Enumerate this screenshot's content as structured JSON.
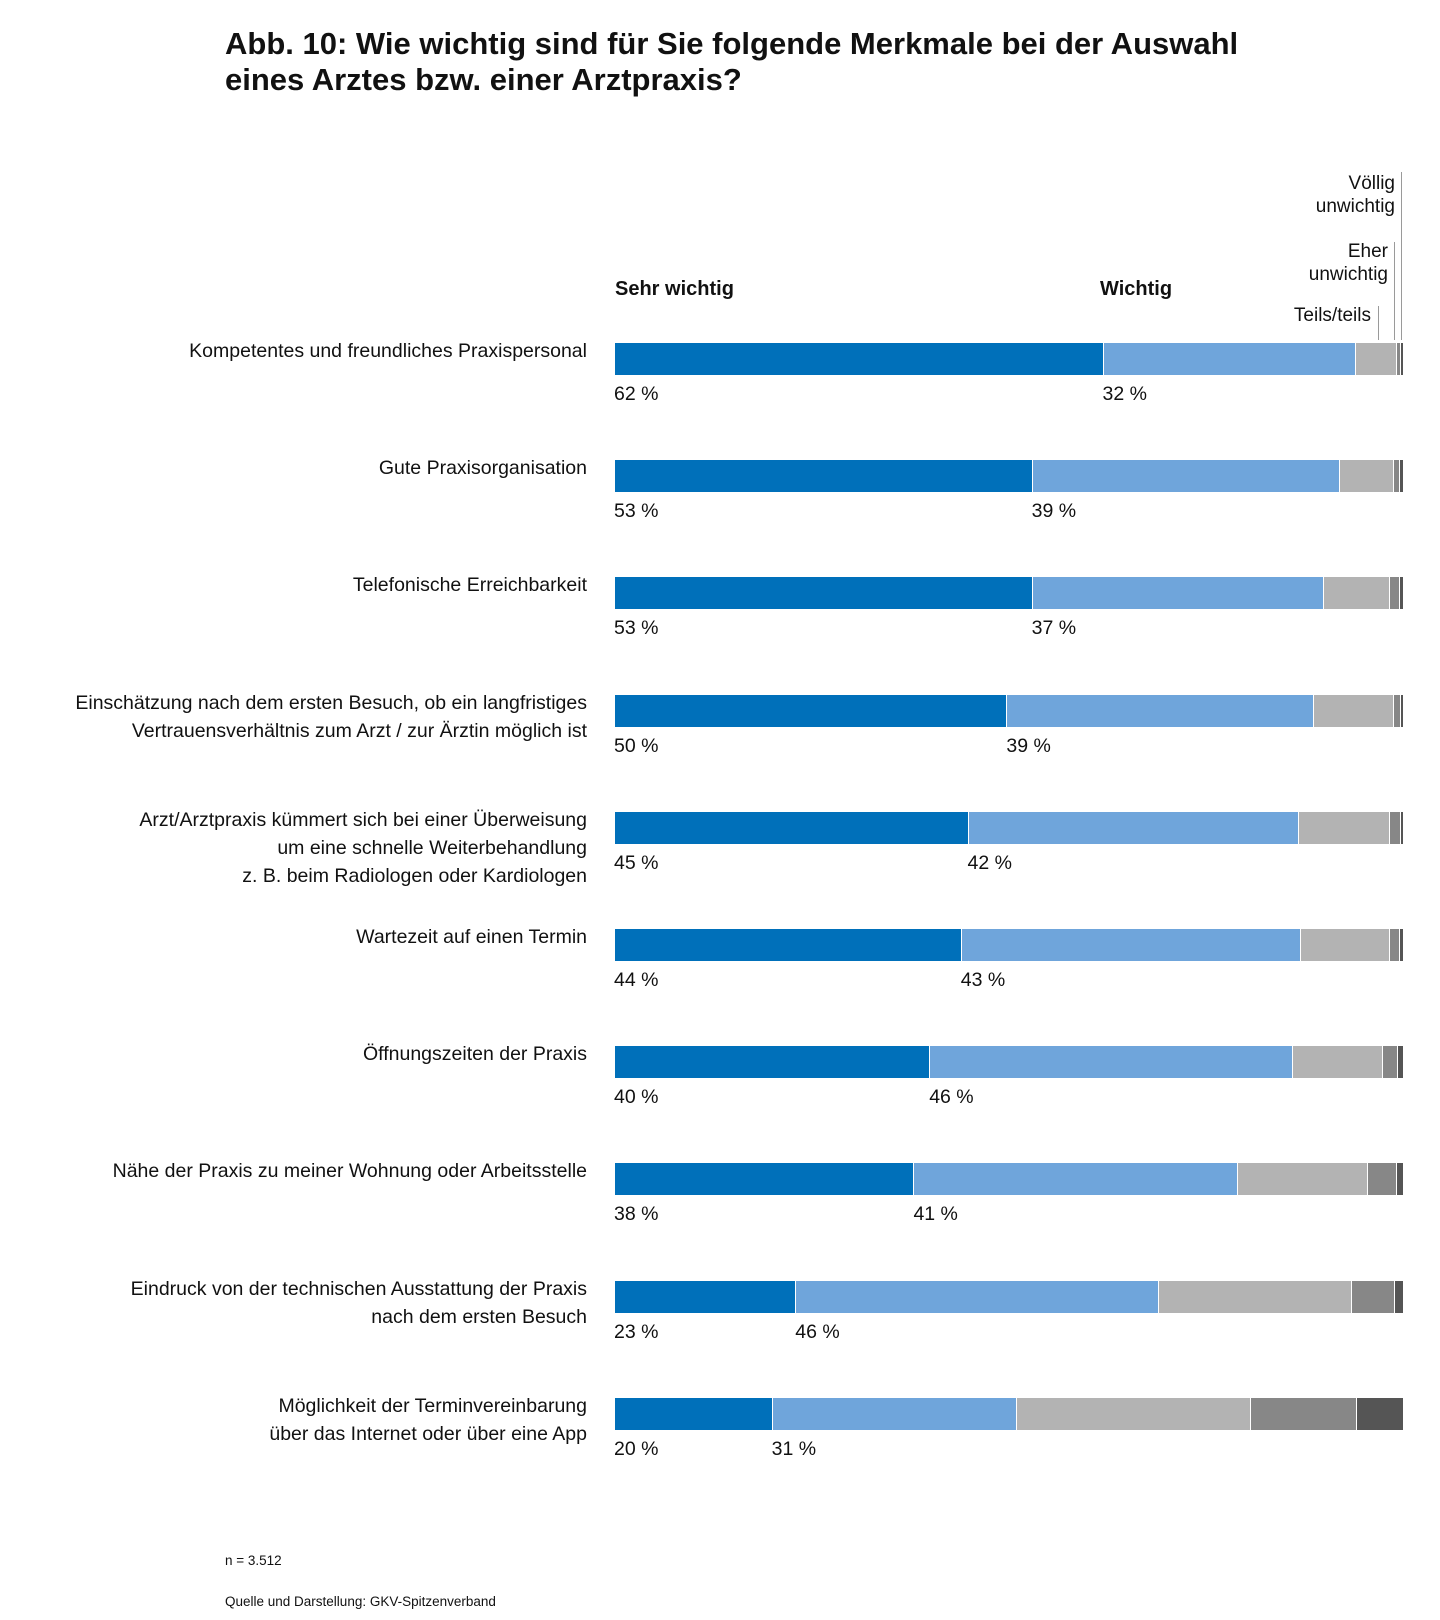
{
  "title": {
    "line1": "Abb. 10: Wie wichtig sind für Sie folgende Merkmale bei der Auswahl",
    "line2": "eines Arztes bzw. einer Arztpraxis?"
  },
  "legend": {
    "sehr_wichtig": "Sehr wichtig",
    "wichtig": "Wichtig",
    "teils": "Teils/teils",
    "eher": [
      "Eher",
      "unwichtig"
    ],
    "voellig": [
      "Völlig",
      "unwichtig"
    ]
  },
  "colors": {
    "sehr_wichtig": "#0070ba",
    "wichtig": "#6fa5db",
    "teils": "#b3b3b3",
    "eher": "#878787",
    "voellig": "#555555"
  },
  "chart_data": {
    "type": "bar",
    "orientation": "horizontal-stacked-100",
    "title": "Abb. 10: Wie wichtig sind für Sie folgende Merkmale bei der Auswahl eines Arztes bzw. einer Arztpraxis?",
    "series_names": [
      "Sehr wichtig",
      "Wichtig",
      "Teils/teils",
      "Eher unwichtig",
      "Völlig unwichtig"
    ],
    "rows": [
      {
        "label": [
          "Kompetentes und freundliches Praxispersonal"
        ],
        "values": [
          62,
          32,
          5.2,
          0.5,
          0.3
        ],
        "printed": [
          "62 %",
          "32 %"
        ]
      },
      {
        "label": [
          "Gute Praxisorganisation"
        ],
        "values": [
          53,
          39,
          6.8,
          0.8,
          0.4
        ],
        "printed": [
          "53 %",
          "39 %"
        ]
      },
      {
        "label": [
          "Telefonische Erreichbarkeit"
        ],
        "values": [
          53,
          37,
          8.4,
          1.2,
          0.4
        ],
        "printed": [
          "53 %",
          "37 %"
        ]
      },
      {
        "label": [
          "Einschätzung nach dem ersten Besuch, ob ein langfristiges",
          "Vertrauensverhältnis zum Arzt / zur Ärztin möglich ist"
        ],
        "values": [
          50,
          39,
          10.2,
          0.9,
          0.3
        ],
        "printed": [
          "50 %",
          "39 %"
        ]
      },
      {
        "label": [
          "Arzt/Arztpraxis kümmert sich bei einer Überweisung",
          "um eine schnelle Weiterbehandlung",
          "z. B. beim Radiologen oder Kardiologen"
        ],
        "values": [
          45,
          42,
          11.7,
          1.3,
          0.3
        ],
        "printed": [
          "45 %",
          "42 %"
        ]
      },
      {
        "label": [
          "Wartezeit auf einen Termin"
        ],
        "values": [
          44,
          43,
          11.4,
          1.2,
          0.4
        ],
        "printed": [
          "44 %",
          "43 %"
        ]
      },
      {
        "label": [
          "Öffnungszeiten der Praxis"
        ],
        "values": [
          40,
          46,
          11.5,
          1.9,
          0.6
        ],
        "printed": [
          "40 %",
          "46 %"
        ]
      },
      {
        "label": [
          "Nähe der Praxis zu meiner Wohnung oder Arbeitsstelle"
        ],
        "values": [
          38,
          41,
          16.6,
          3.7,
          0.7
        ],
        "printed": [
          "38 %",
          "41 %"
        ]
      },
      {
        "label": [
          "Eindruck von der technischen Ausstattung der Praxis",
          "nach dem ersten Besuch"
        ],
        "values": [
          23,
          46,
          24.5,
          5.5,
          1.0
        ],
        "printed": [
          "23 %",
          "46 %"
        ]
      },
      {
        "label": [
          "Möglichkeit der Terminvereinbarung",
          "über das Internet oder über eine App"
        ],
        "values": [
          20,
          31,
          29.7,
          13.5,
          5.8
        ],
        "printed": [
          "20 %",
          "31 %"
        ]
      }
    ]
  },
  "footer": {
    "n": "n = 3.512",
    "source": "Quelle und Darstellung: GKV-Spitzenverband"
  }
}
